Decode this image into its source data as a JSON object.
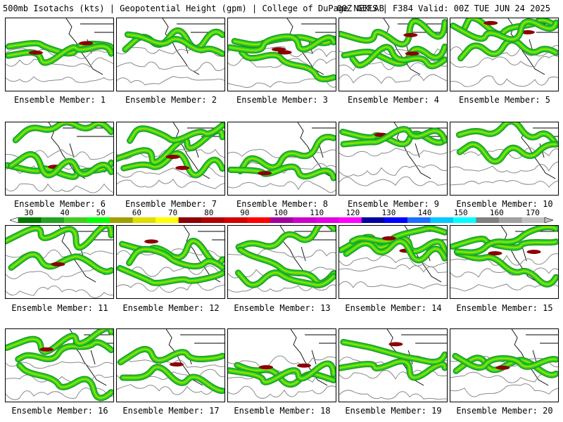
{
  "header": {
    "left": "500mb Isotachs (kts) | Geopotential Height (gpm) | College of DuPage NEXLAB",
    "right": "00Z GEFS | F384 Valid: 00Z TUE JUN 24 2025"
  },
  "members": [
    "Ensemble Member: 1",
    "Ensemble Member: 2",
    "Ensemble Member: 3",
    "Ensemble Member: 4",
    "Ensemble Member: 5",
    "Ensemble Member: 6",
    "Ensemble Member: 7",
    "Ensemble Member: 8",
    "Ensemble Member: 9",
    "Ensemble Member: 10",
    "Ensemble Member: 11",
    "Ensemble Member: 12",
    "Ensemble Member: 13",
    "Ensemble Member: 14",
    "Ensemble Member: 15",
    "Ensemble Member: 16",
    "Ensemble Member: 17",
    "Ensemble Member: 18",
    "Ensemble Member: 19",
    "Ensemble Member: 20"
  ],
  "colorbar": {
    "ticks": [
      "30",
      "40",
      "50",
      "60",
      "70",
      "80",
      "90",
      "100",
      "110",
      "120",
      "130",
      "140",
      "150",
      "160",
      "170"
    ],
    "colors": [
      "#007a00",
      "#22a322",
      "#44cc22",
      "#00ff00",
      "#a0a000",
      "#dede00",
      "#ffff00",
      "#8b0000",
      "#b00000",
      "#d00000",
      "#ff0000",
      "#a000a0",
      "#cc00cc",
      "#e000e0",
      "#ff00ff",
      "#0000a0",
      "#0000ff",
      "#1e6eff",
      "#00c8ff",
      "#00ffff",
      "#808080",
      "#a0a0a0",
      "#c0c0c0"
    ]
  }
}
